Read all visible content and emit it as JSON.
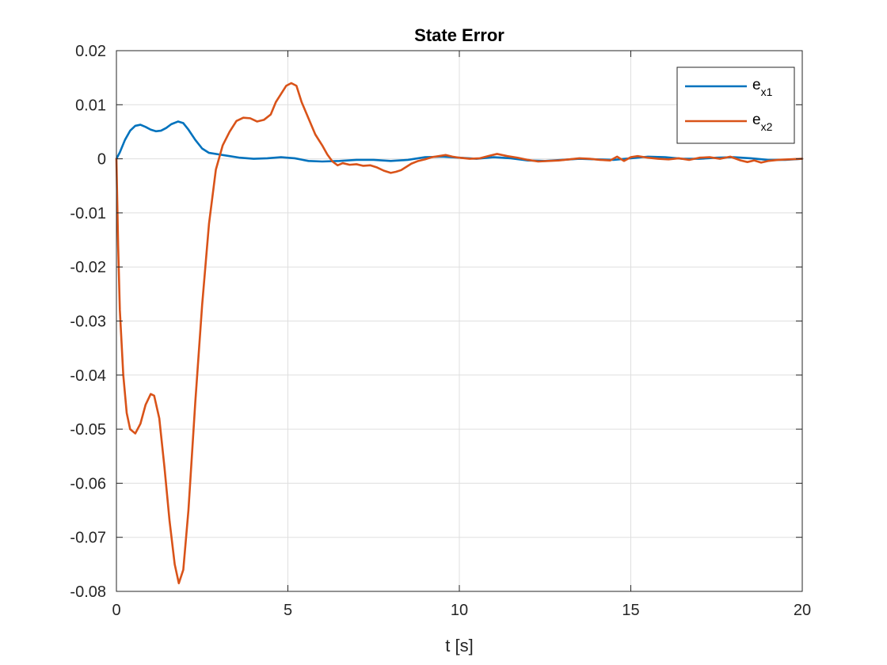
{
  "chart_data": {
    "type": "line",
    "title": "State Error",
    "xlabel": "t [s]",
    "ylabel": "",
    "xlim": [
      0,
      20
    ],
    "ylim": [
      -0.08,
      0.02
    ],
    "xticks": [
      0,
      5,
      10,
      15,
      20
    ],
    "xtick_labels": [
      "0",
      "5",
      "10",
      "15",
      "20"
    ],
    "yticks": [
      0.02,
      0.01,
      0,
      -0.01,
      -0.02,
      -0.03,
      -0.04,
      -0.05,
      -0.06,
      -0.07,
      -0.08
    ],
    "ytick_labels": [
      "0.02",
      "0.01",
      "0",
      "-0.01",
      "-0.02",
      "-0.03",
      "-0.04",
      "-0.05",
      "-0.06",
      "-0.07",
      "-0.08"
    ],
    "grid": true,
    "legend_position": "top-right",
    "series": [
      {
        "name": "e",
        "name_sub": "x1",
        "color": "#0072BD",
        "points": [
          [
            0,
            0
          ],
          [
            0.1,
            0.0012
          ],
          [
            0.25,
            0.0035
          ],
          [
            0.4,
            0.0052
          ],
          [
            0.55,
            0.0061
          ],
          [
            0.7,
            0.0063
          ],
          [
            0.85,
            0.0059
          ],
          [
            1.0,
            0.0054
          ],
          [
            1.15,
            0.0051
          ],
          [
            1.3,
            0.0052
          ],
          [
            1.45,
            0.0057
          ],
          [
            1.6,
            0.0064
          ],
          [
            1.8,
            0.0069
          ],
          [
            1.95,
            0.0066
          ],
          [
            2.1,
            0.0054
          ],
          [
            2.3,
            0.0035
          ],
          [
            2.5,
            0.0019
          ],
          [
            2.7,
            0.0011
          ],
          [
            3.0,
            0.0008
          ],
          [
            3.3,
            0.0005
          ],
          [
            3.6,
            0.0002
          ],
          [
            4.0,
            0.0
          ],
          [
            4.4,
            0.0001
          ],
          [
            4.8,
            0.0003
          ],
          [
            5.2,
            0.0001
          ],
          [
            5.6,
            -0.0004
          ],
          [
            6.0,
            -0.0005
          ],
          [
            6.5,
            -0.0004
          ],
          [
            7.0,
            -0.0002
          ],
          [
            7.5,
            -0.0002
          ],
          [
            8.0,
            -0.0004
          ],
          [
            8.5,
            -0.0002
          ],
          [
            9.0,
            0.0003
          ],
          [
            9.5,
            0.0004
          ],
          [
            10.0,
            0.0002
          ],
          [
            10.5,
            0.0
          ],
          [
            11.0,
            0.0003
          ],
          [
            11.5,
            0.0001
          ],
          [
            12.0,
            -0.0003
          ],
          [
            12.5,
            -0.0004
          ],
          [
            13.0,
            -0.0002
          ],
          [
            13.5,
            0.0
          ],
          [
            14.0,
            -0.0001
          ],
          [
            14.5,
            -0.0002
          ],
          [
            15.0,
            0.0001
          ],
          [
            15.5,
            0.0004
          ],
          [
            16.0,
            0.0003
          ],
          [
            16.5,
            0.0
          ],
          [
            17.0,
            0.0
          ],
          [
            17.5,
            0.0002
          ],
          [
            18.0,
            0.0003
          ],
          [
            18.5,
            0.0001
          ],
          [
            19.0,
            -0.0002
          ],
          [
            19.5,
            -0.0002
          ],
          [
            20.0,
            0.0
          ]
        ]
      },
      {
        "name": "e",
        "name_sub": "x2",
        "color": "#D95319",
        "points": [
          [
            0,
            0
          ],
          [
            0.05,
            -0.016
          ],
          [
            0.1,
            -0.028
          ],
          [
            0.2,
            -0.04
          ],
          [
            0.3,
            -0.047
          ],
          [
            0.4,
            -0.05
          ],
          [
            0.55,
            -0.0508
          ],
          [
            0.7,
            -0.049
          ],
          [
            0.85,
            -0.0455
          ],
          [
            1.0,
            -0.0435
          ],
          [
            1.1,
            -0.0438
          ],
          [
            1.25,
            -0.048
          ],
          [
            1.4,
            -0.057
          ],
          [
            1.55,
            -0.067
          ],
          [
            1.7,
            -0.075
          ],
          [
            1.82,
            -0.0785
          ],
          [
            1.95,
            -0.076
          ],
          [
            2.1,
            -0.065
          ],
          [
            2.3,
            -0.045
          ],
          [
            2.5,
            -0.027
          ],
          [
            2.7,
            -0.012
          ],
          [
            2.9,
            -0.002
          ],
          [
            3.1,
            0.0025
          ],
          [
            3.3,
            0.005
          ],
          [
            3.5,
            0.007
          ],
          [
            3.7,
            0.0076
          ],
          [
            3.9,
            0.0075
          ],
          [
            4.1,
            0.0069
          ],
          [
            4.3,
            0.0072
          ],
          [
            4.5,
            0.0082
          ],
          [
            4.65,
            0.0105
          ],
          [
            4.8,
            0.012
          ],
          [
            4.95,
            0.0135
          ],
          [
            5.1,
            0.014
          ],
          [
            5.25,
            0.0135
          ],
          [
            5.4,
            0.0105
          ],
          [
            5.6,
            0.0075
          ],
          [
            5.8,
            0.0045
          ],
          [
            6.0,
            0.0025
          ],
          [
            6.15,
            0.0008
          ],
          [
            6.3,
            -0.0005
          ],
          [
            6.45,
            -0.0012
          ],
          [
            6.6,
            -0.0008
          ],
          [
            6.8,
            -0.0011
          ],
          [
            7.0,
            -0.001
          ],
          [
            7.2,
            -0.0013
          ],
          [
            7.4,
            -0.0012
          ],
          [
            7.6,
            -0.0016
          ],
          [
            7.8,
            -0.0022
          ],
          [
            8.0,
            -0.0026
          ],
          [
            8.15,
            -0.0024
          ],
          [
            8.3,
            -0.0021
          ],
          [
            8.45,
            -0.0015
          ],
          [
            8.6,
            -0.0009
          ],
          [
            8.8,
            -0.0004
          ],
          [
            9.0,
            -0.0001
          ],
          [
            9.2,
            0.0003
          ],
          [
            9.4,
            0.0005
          ],
          [
            9.6,
            0.0007
          ],
          [
            9.8,
            0.0004
          ],
          [
            10.0,
            0.0002
          ],
          [
            10.3,
            0.0
          ],
          [
            10.6,
            0.0001
          ],
          [
            10.9,
            0.0006
          ],
          [
            11.1,
            0.0009
          ],
          [
            11.4,
            0.0005
          ],
          [
            11.7,
            0.0002
          ],
          [
            12.0,
            -0.0002
          ],
          [
            12.3,
            -0.0005
          ],
          [
            12.6,
            -0.0004
          ],
          [
            12.9,
            -0.0003
          ],
          [
            13.2,
            -0.0001
          ],
          [
            13.5,
            0.0001
          ],
          [
            13.8,
            0.0
          ],
          [
            14.1,
            -0.0002
          ],
          [
            14.4,
            -0.0003
          ],
          [
            14.6,
            0.0004
          ],
          [
            14.8,
            -0.0004
          ],
          [
            15.0,
            0.0003
          ],
          [
            15.2,
            0.0005
          ],
          [
            15.5,
            0.0002
          ],
          [
            15.8,
            0.0
          ],
          [
            16.1,
            -0.0001
          ],
          [
            16.4,
            0.0001
          ],
          [
            16.7,
            -0.0002
          ],
          [
            17.0,
            0.0002
          ],
          [
            17.3,
            0.0003
          ],
          [
            17.6,
            0.0
          ],
          [
            17.9,
            0.0004
          ],
          [
            18.2,
            -0.0003
          ],
          [
            18.4,
            -0.0006
          ],
          [
            18.6,
            -0.0003
          ],
          [
            18.8,
            -0.0007
          ],
          [
            19.0,
            -0.0004
          ],
          [
            19.3,
            -0.0002
          ],
          [
            19.6,
            -0.0001
          ],
          [
            20.0,
            0.0
          ]
        ]
      }
    ]
  }
}
